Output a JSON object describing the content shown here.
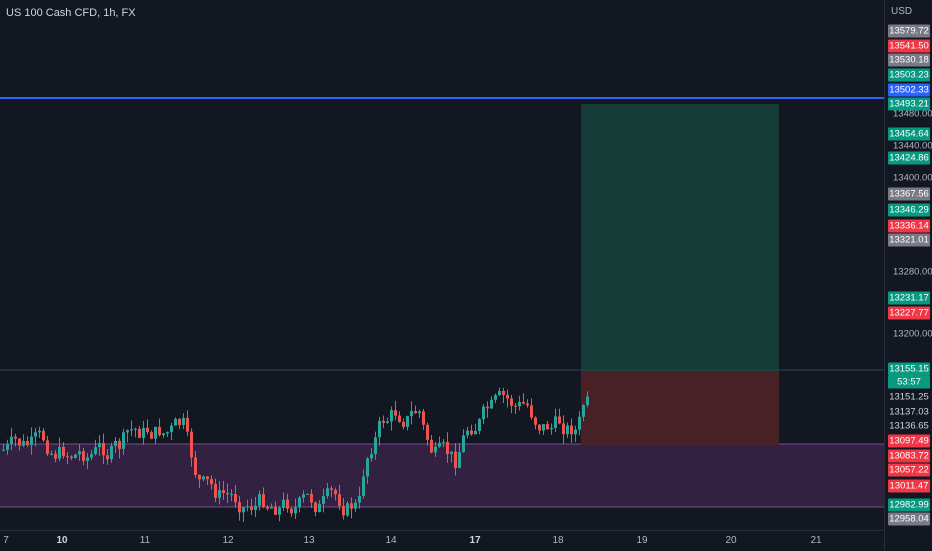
{
  "header": {
    "symbol": "US 100 Cash CFD, 1h, FX",
    "currency": "USD"
  },
  "price_axis": {
    "ticks": [
      "13480.00",
      "13440.00",
      "13400.00",
      "13280.00",
      "13200.00"
    ],
    "tags": [
      {
        "value": "13579.72",
        "color": "#787b86"
      },
      {
        "value": "13541.50",
        "color": "#f23645"
      },
      {
        "value": "13530.18",
        "color": "#787b86"
      },
      {
        "value": "13503.23",
        "color": "#089981"
      },
      {
        "value": "13502.33",
        "color": "#2962ff"
      },
      {
        "value": "13493.21",
        "color": "#089981"
      },
      {
        "value": "13454.64",
        "color": "#089981"
      },
      {
        "value": "13424.86",
        "color": "#089981"
      },
      {
        "value": "13367.56",
        "color": "#787b86"
      },
      {
        "value": "13346.29",
        "color": "#089981"
      },
      {
        "value": "13336.14",
        "color": "#f23645"
      },
      {
        "value": "13321.01",
        "color": "#787b86"
      },
      {
        "value": "13231.17",
        "color": "#089981"
      },
      {
        "value": "13227.77",
        "color": "#f23645"
      },
      {
        "value": "13155.15",
        "color": "#089981"
      },
      {
        "value": "53:57",
        "color": "#089981"
      },
      {
        "value": "13151.25",
        "color": "#131722"
      },
      {
        "value": "13137.03",
        "color": "#131722"
      },
      {
        "value": "13136.65",
        "color": "#131722"
      },
      {
        "value": "13097.49",
        "color": "#f23645"
      },
      {
        "value": "13083.72",
        "color": "#f23645"
      },
      {
        "value": "13057.22",
        "color": "#f23645"
      },
      {
        "value": "13011.47",
        "color": "#f23645"
      },
      {
        "value": "12982.99",
        "color": "#089981"
      },
      {
        "value": "12958.04",
        "color": "#787b86"
      }
    ]
  },
  "time_axis": {
    "labels": [
      {
        "text": "7",
        "bold": false
      },
      {
        "text": "10",
        "bold": true
      },
      {
        "text": "11",
        "bold": false
      },
      {
        "text": "12",
        "bold": false
      },
      {
        "text": "13",
        "bold": false
      },
      {
        "text": "14",
        "bold": false
      },
      {
        "text": "17",
        "bold": true
      },
      {
        "text": "18",
        "bold": false
      },
      {
        "text": "19",
        "bold": false
      },
      {
        "text": "20",
        "bold": false
      },
      {
        "text": "21",
        "bold": false
      }
    ]
  },
  "colors": {
    "up": "#26a69a",
    "down": "#ef5350",
    "horizontal_line": "#2962ff",
    "zone": "#4a2a5a",
    "target": "#1a3c38",
    "stop": "#4a2428"
  }
}
